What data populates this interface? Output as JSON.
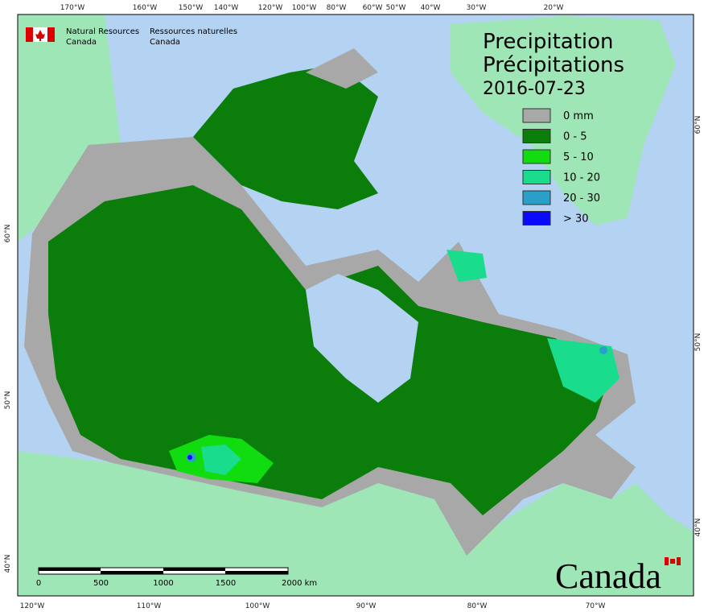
{
  "header": {
    "agency_en": "Natural Resources",
    "country_en": "Canada",
    "agency_fr": "Ressources naturelles",
    "country_fr": "Canada"
  },
  "title": {
    "en": "Precipitation",
    "fr": "Précipitations",
    "date": "2016-07-23"
  },
  "legend": [
    {
      "label": "0 mm",
      "color": "#a8a8a8"
    },
    {
      "label": "0 - 5",
      "color": "#0b7d0b"
    },
    {
      "label": "5 - 10",
      "color": "#10dc10"
    },
    {
      "label": "10 - 20",
      "color": "#19dc8c"
    },
    {
      "label": "20 - 30",
      "color": "#2aa0c8"
    },
    {
      "label": "> 30",
      "color": "#0a0aff"
    }
  ],
  "graticule": {
    "top": [
      "170°W",
      "160°W",
      "150°W",
      "140°W",
      "120°W",
      "100°W",
      "80°W",
      "60°W",
      "50°W",
      "40°W",
      "30°W",
      "20°W"
    ],
    "bottom": [
      "120°W",
      "110°W",
      "100°W",
      "90°W",
      "80°W",
      "70°W"
    ],
    "left": [
      "60°N",
      "50°N",
      "40°N"
    ],
    "right": [
      "60°N",
      "50°N",
      "40°N"
    ]
  },
  "scale_bar": [
    "0",
    "500",
    "1000",
    "1500",
    "2000 km"
  ],
  "wordmark": "Canada"
}
